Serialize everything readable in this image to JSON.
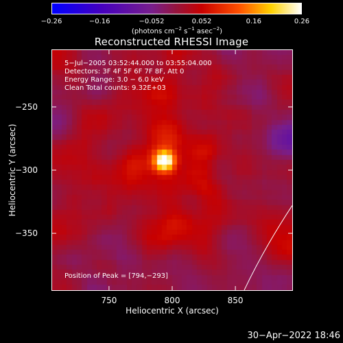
{
  "chart_data": {
    "type": "heatmap",
    "title": "Reconstructed RHESSI Image",
    "xlabel": "Heliocentric X (arcsec)",
    "ylabel": "Heliocentric Y (arcsec)",
    "xlim": [
      705,
      895
    ],
    "ylim": [
      -395,
      -205
    ],
    "x_ticks": [
      "750",
      "800",
      "850"
    ],
    "y_ticks": [
      "−250",
      "−300",
      "−350"
    ],
    "colorbar": {
      "ticks": [
        "−0.26",
        "−0.16",
        "−0.052",
        "0.052",
        "0.16",
        "0.26"
      ],
      "range": [
        -0.26,
        0.26
      ],
      "unit_text": "(photons cm",
      "unit_parts": [
        "(photons cm",
        "−2",
        " s",
        "−1",
        " asec",
        "−2",
        ")"
      ]
    },
    "info": {
      "time": "5−Jul−2005 03:52:44.000 to 03:55:04.000",
      "detectors": "Detectors: 3F 4F 5F 6F 7F 8F, Att 0",
      "energy": "Energy Range: 3.0 − 6.0 keV",
      "clean": "Clean     Total counts: 9.32E+03",
      "peak": "Position of Peak = [794,−293]"
    },
    "peak": {
      "x": 794,
      "y": -293,
      "value": 0.26
    },
    "limb_arc": [
      [
        857,
        -395
      ],
      [
        895,
        -328
      ]
    ],
    "colors": {
      "background": "#000000",
      "text": "#ffffff",
      "limb": "#ffffff"
    }
  },
  "footer": {
    "timestamp": "30−Apr−2022 18:46"
  }
}
